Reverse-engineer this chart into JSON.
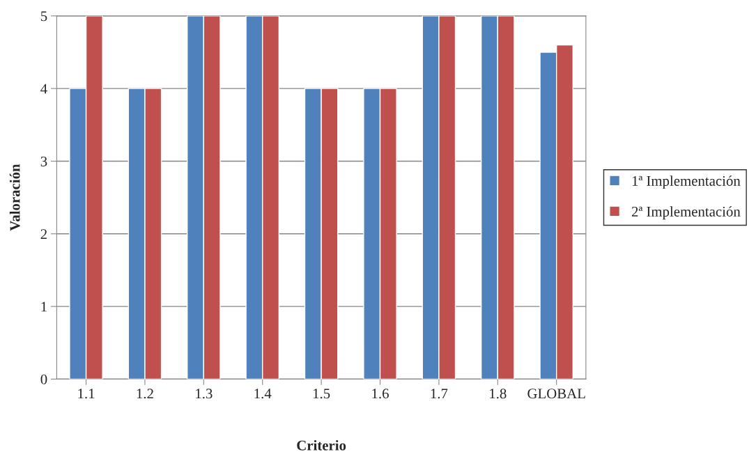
{
  "chart_data": {
    "type": "bar",
    "xlabel": "Criterio",
    "ylabel": "Valoración",
    "categories": [
      "1.1",
      "1.2",
      "1.3",
      "1.4",
      "1.5",
      "1.6",
      "1.7",
      "1.8",
      "GLOBAL"
    ],
    "series": [
      {
        "name": "1ª Implementación",
        "color": "#4f81bd",
        "values": [
          4,
          4,
          5,
          5,
          4,
          4,
          5,
          5,
          4.5
        ]
      },
      {
        "name": "2ª Implementación",
        "color": "#c0504d",
        "values": [
          5,
          4,
          5,
          5,
          4,
          4,
          5,
          5,
          4.6
        ]
      }
    ],
    "ylim": [
      0,
      5
    ],
    "yticks": [
      0,
      1,
      2,
      3,
      4,
      5
    ],
    "grid": "y",
    "legend": "right"
  }
}
